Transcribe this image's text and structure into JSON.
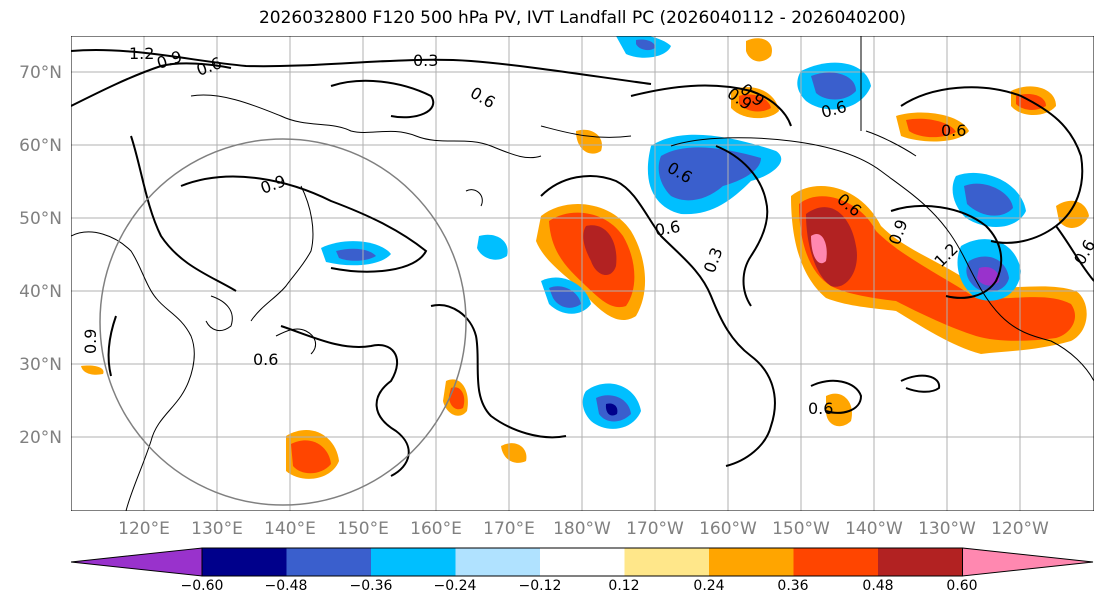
{
  "title": "2026032800 F120 500 hPa PV, IVT Landfall PC (2026040112 - 2026040200)",
  "lat_labels": [
    "70°N",
    "60°N",
    "50°N",
    "40°N",
    "30°N",
    "20°N"
  ],
  "lon_labels": [
    "120°E",
    "130°E",
    "140°E",
    "150°E",
    "160°E",
    "170°E",
    "180°W",
    "170°W",
    "160°W",
    "150°W",
    "140°W",
    "130°W",
    "120°W"
  ],
  "colorbar": {
    "ticks": [
      "−0.60",
      "−0.48",
      "−0.36",
      "−0.24",
      "−0.12",
      "0.12",
      "0.24",
      "0.36",
      "0.48",
      "0.60"
    ],
    "colors": [
      "#9932cc",
      "#00008b",
      "#3a5fcd",
      "#00bfff",
      "#b0e2ff",
      "#ffffff",
      "#ffe78a",
      "#ffa500",
      "#ff4500",
      "#b22222",
      "#ff88b0"
    ]
  },
  "contour_labels": [
    "1.2",
    "0.9",
    "0.6",
    "0.3",
    "0.6",
    "0.9",
    "0.6",
    "0.9",
    "0.6",
    "0.6",
    "0.9",
    "0.6",
    "0.3",
    "0.6",
    "0.9",
    "1.2",
    "0.9",
    "0.6",
    "0.6",
    "0.6"
  ]
}
